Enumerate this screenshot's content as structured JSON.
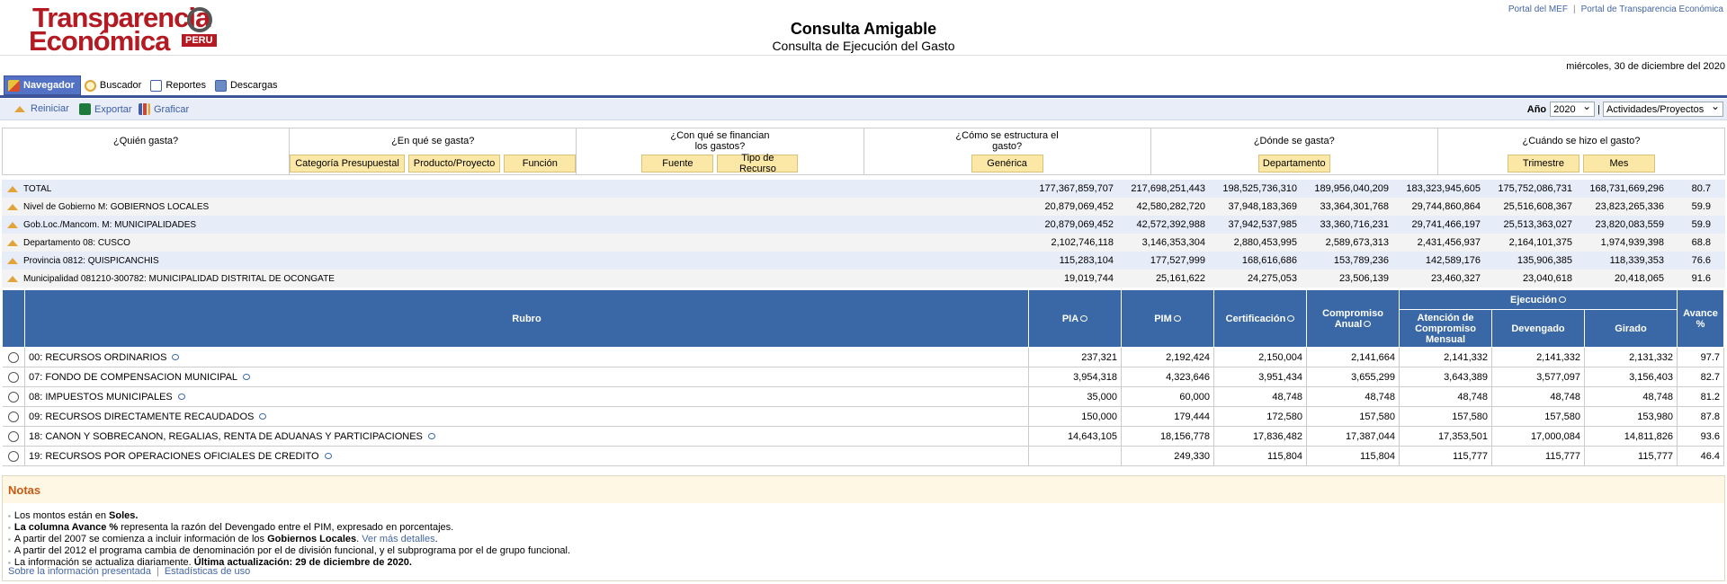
{
  "logo": {
    "line1": "Transparencia",
    "line2": "Económica",
    "badge": "PERU"
  },
  "header": {
    "title": "Consulta Amigable",
    "subtitle": "Consulta de Ejecución del Gasto",
    "links": [
      "Portal del MEF",
      "Portal de Transparencia Económica"
    ],
    "date": "miércoles, 30 de diciembre del 2020"
  },
  "tabs": [
    {
      "label": "Navegador",
      "icon": "navigator-icon",
      "active": true
    },
    {
      "label": "Buscador",
      "icon": "search-icon",
      "active": false
    },
    {
      "label": "Reportes",
      "icon": "report-icon",
      "active": false
    },
    {
      "label": "Descargas",
      "icon": "download-icon",
      "active": false
    }
  ],
  "toolbar": {
    "reiniciar": "Reiniciar",
    "exportar": "Exportar",
    "graficar": "Graficar",
    "year_label": "Año",
    "year_value": "2020",
    "sep": "|",
    "type_value": "Actividades/Proyectos"
  },
  "questions": [
    {
      "label": "¿Quién gasta?",
      "buttons": []
    },
    {
      "label": "¿En qué se gasta?",
      "buttons": [
        "Categoría Presupuestal",
        "Producto/Proyecto",
        "Función"
      ]
    },
    {
      "label": "¿Con qué se financian los gastos?",
      "buttons": [
        "Fuente",
        "Tipo de Recurso"
      ]
    },
    {
      "label": "¿Cómo se estructura el gasto?",
      "buttons": [
        "Genérica"
      ]
    },
    {
      "label": "¿Dónde se gasta?",
      "buttons": [
        "Departamento"
      ]
    },
    {
      "label": "¿Cuándo se hizo el gasto?",
      "buttons": [
        "Trimestre",
        "Mes"
      ]
    }
  ],
  "summary": [
    {
      "label": "TOTAL",
      "values": [
        "177,367,859,707",
        "217,698,251,443",
        "198,525,736,310",
        "189,956,040,209",
        "183,323,945,605",
        "175,752,086,731",
        "168,731,669,296",
        "80.7"
      ]
    },
    {
      "label": "Nivel de Gobierno M: GOBIERNOS LOCALES",
      "values": [
        "20,879,069,452",
        "42,580,282,720",
        "37,948,183,369",
        "33,364,301,768",
        "29,744,860,864",
        "25,516,608,367",
        "23,823,265,336",
        "59.9"
      ]
    },
    {
      "label": "Gob.Loc./Mancom. M: MUNICIPALIDADES",
      "values": [
        "20,879,069,452",
        "42,572,392,988",
        "37,942,537,985",
        "33,360,716,231",
        "29,741,466,197",
        "25,513,363,027",
        "23,820,083,559",
        "59.9"
      ]
    },
    {
      "label": "Departamento 08: CUSCO",
      "values": [
        "2,102,746,118",
        "3,146,353,304",
        "2,880,453,995",
        "2,589,673,313",
        "2,431,456,937",
        "2,164,101,375",
        "1,974,939,398",
        "68.8"
      ]
    },
    {
      "label": "Provincia 0812: QUISPICANCHIS",
      "values": [
        "115,283,104",
        "177,527,999",
        "168,616,686",
        "153,789,236",
        "142,589,176",
        "135,906,385",
        "118,339,353",
        "76.6"
      ]
    },
    {
      "label": "Municipalidad 081210-300782: MUNICIPALIDAD DISTRITAL DE OCONGATE",
      "values": [
        "19,019,744",
        "25,161,622",
        "24,275,053",
        "23,506,139",
        "23,460,327",
        "23,040,618",
        "20,418,065",
        "91.6"
      ]
    }
  ],
  "table": {
    "headers": {
      "rubro": "Rubro",
      "pia": "PIA",
      "pim": "PIM",
      "certificacion": "Certificación",
      "compromiso_l1": "Compromiso",
      "compromiso_l2": "Anual",
      "ejecucion": "Ejecución",
      "atencion_l1": "Atención de",
      "atencion_l2": "Compromiso",
      "atencion_l3": "Mensual",
      "devengado": "Devengado",
      "girado": "Girado",
      "avance_l1": "Avance",
      "avance_l2": "%"
    },
    "rows": [
      {
        "rubro": "00: RECURSOS ORDINARIOS",
        "values": [
          "237,321",
          "2,192,424",
          "2,150,004",
          "2,141,664",
          "2,141,332",
          "2,141,332",
          "2,131,332",
          "97.7"
        ]
      },
      {
        "rubro": "07: FONDO DE COMPENSACION MUNICIPAL",
        "values": [
          "3,954,318",
          "4,323,646",
          "3,951,434",
          "3,655,299",
          "3,643,389",
          "3,577,097",
          "3,156,403",
          "82.7"
        ]
      },
      {
        "rubro": "08: IMPUESTOS MUNICIPALES",
        "values": [
          "35,000",
          "60,000",
          "48,748",
          "48,748",
          "48,748",
          "48,748",
          "48,748",
          "81.2"
        ]
      },
      {
        "rubro": "09: RECURSOS DIRECTAMENTE RECAUDADOS",
        "values": [
          "150,000",
          "179,444",
          "172,580",
          "157,580",
          "157,580",
          "157,580",
          "153,980",
          "87.8"
        ]
      },
      {
        "rubro": "18: CANON Y SOBRECANON, REGALIAS, RENTA DE ADUANAS Y PARTICIPACIONES",
        "values": [
          "14,643,105",
          "18,156,778",
          "17,836,482",
          "17,387,044",
          "17,353,501",
          "17,000,084",
          "14,811,826",
          "93.6"
        ]
      },
      {
        "rubro": "19: RECURSOS POR OPERACIONES OFICIALES DE CREDITO",
        "values": [
          "",
          "249,330",
          "115,804",
          "115,804",
          "115,777",
          "115,777",
          "115,777",
          "46.4"
        ]
      }
    ]
  },
  "notes": {
    "title": "Notas",
    "n1_a": "Los montos están en ",
    "n1_b": "Soles.",
    "n2_a": "La columna Avance %",
    "n2_b": " representa la razón del Devengado entre el PIM, expresado en porcentajes.",
    "n3_a": "A partir del 2007 se comienza a incluir información de los ",
    "n3_b": "Gobiernos Locales",
    "n3_c": ". ",
    "n3_link": "Ver más detalles",
    "n3_d": ".",
    "n4": "A partir del 2012 el programa cambia de denominación por el de división funcional, y el subprograma por el de grupo funcional.",
    "n5_a": "La información se actualiza diariamente. ",
    "n5_b": "Última actualización: 29 de diciembre de 2020."
  },
  "footer": {
    "link1": "Sobre la información presentada",
    "sep": "|",
    "link2": "Estadísticas de uso"
  }
}
